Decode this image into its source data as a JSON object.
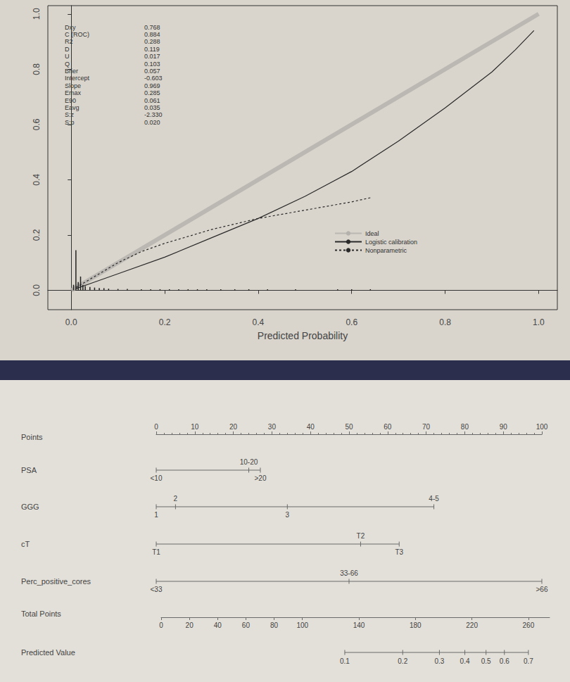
{
  "chart_data": [
    {
      "type": "line",
      "x_label": "Predicted Probability",
      "xlim": [
        -0.05,
        1.04
      ],
      "xticks": [
        {
          "value": 0,
          "label": "0.0"
        },
        {
          "value": 0.2,
          "label": "0.2"
        },
        {
          "value": 0.4,
          "label": "0.4"
        },
        {
          "value": 0.6,
          "label": "0.6"
        },
        {
          "value": 0.8,
          "label": "0.8"
        },
        {
          "value": 1,
          "label": "1.0"
        }
      ],
      "ylim": [
        -0.07,
        1.03
      ],
      "yticks": [
        {
          "value": 0,
          "label": "0.0"
        },
        {
          "value": 0.2,
          "label": "0.2"
        },
        {
          "value": 0.4,
          "label": "0.4"
        },
        {
          "value": 0.6,
          "label": "0.6"
        },
        {
          "value": 0.8,
          "label": "0.8"
        },
        {
          "value": 1,
          "label": "1.0"
        }
      ],
      "legend": "lower right",
      "series": [
        {
          "name": "Ideal",
          "color": "#b5b2ad",
          "line_style": "thick",
          "x": [
            0,
            1
          ],
          "values": [
            0,
            1
          ]
        },
        {
          "name": "Logistic calibration",
          "color": "#2a2a2a",
          "line_style": "solid",
          "x": [
            0.01,
            0.05,
            0.1,
            0.2,
            0.3,
            0.4,
            0.5,
            0.6,
            0.7,
            0.8,
            0.9,
            0.95,
            0.99
          ],
          "values": [
            0.006,
            0.03,
            0.06,
            0.12,
            0.19,
            0.26,
            0.34,
            0.43,
            0.54,
            0.66,
            0.79,
            0.87,
            0.94
          ]
        },
        {
          "name": "Nonparametric",
          "color": "#2a2a2a",
          "line_style": "dashed",
          "x": [
            0.01,
            0.05,
            0.1,
            0.15,
            0.2,
            0.3,
            0.4,
            0.5,
            0.6,
            0.64
          ],
          "values": [
            0.01,
            0.05,
            0.1,
            0.14,
            0.17,
            0.22,
            0.26,
            0.29,
            0.32,
            0.335
          ]
        }
      ],
      "rug": {
        "color": "#222222",
        "x": [
          0.005,
          0.01,
          0.015,
          0.02,
          0.025,
          0.03,
          0.04,
          0.05,
          0.06,
          0.07,
          0.08,
          0.1,
          0.12,
          0.15,
          0.17,
          0.19,
          0.21,
          0.23,
          0.25,
          0.27,
          0.29,
          0.32,
          0.35,
          0.38,
          0.42,
          0.48,
          0.57,
          0.6,
          0.64
        ],
        "values": [
          0.02,
          0.145,
          0.03,
          0.05,
          0.02,
          0.015,
          0.012,
          0.01,
          0.008,
          0.008,
          0.006,
          0.005,
          0.005,
          0.004,
          0.004,
          0.004,
          0.004,
          0.004,
          0.004,
          0.004,
          0.004,
          0.004,
          0.004,
          0.004,
          0.004,
          0.004,
          0.004,
          0.004,
          0.004
        ]
      },
      "stats": [
        {
          "name": "Dxy",
          "value": 0.768
        },
        {
          "name": "C (ROC)",
          "value": 0.884
        },
        {
          "name": "R2",
          "value": 0.288
        },
        {
          "name": "D",
          "value": 0.119
        },
        {
          "name": "U",
          "value": 0.017
        },
        {
          "name": "Q",
          "value": 0.103
        },
        {
          "name": "Brier",
          "value": 0.057
        },
        {
          "name": "Intercept",
          "value": -0.603
        },
        {
          "name": "Slope",
          "value": 0.969
        },
        {
          "name": "Emax",
          "value": 0.285
        },
        {
          "name": "E90",
          "value": 0.061
        },
        {
          "name": "Eavg",
          "value": 0.035
        },
        {
          "name": "S:z",
          "value": -2.33,
          "label": "-2.330"
        },
        {
          "name": "S:p",
          "value": 0.02,
          "label": "0.020"
        }
      ]
    },
    {
      "type": "nomogram",
      "points_axis": {
        "name": "Points",
        "xlim": [
          0,
          100
        ],
        "xticks": [
          0,
          10,
          20,
          30,
          40,
          50,
          60,
          70,
          80,
          90,
          100
        ]
      },
      "variables": [
        {
          "name": "PSA",
          "levels": [
            {
              "label": "<10",
              "points": 0
            },
            {
              "label": "10-20",
              "points": 24
            },
            {
              "label": ">20",
              "points": 27
            }
          ]
        },
        {
          "name": "GGG",
          "levels": [
            {
              "label": "1",
              "points": 0
            },
            {
              "label": "2",
              "points": 5
            },
            {
              "label": "3",
              "points": 34
            },
            {
              "label": "4-5",
              "points": 72
            }
          ]
        },
        {
          "name": "cT",
          "levels": [
            {
              "label": "T1",
              "points": 0
            },
            {
              "label": "T2",
              "points": 53
            },
            {
              "label": "T3",
              "points": 63
            }
          ]
        },
        {
          "name": "Perc_positive_cores",
          "levels": [
            {
              "label": "<33",
              "points": 0
            },
            {
              "label": "33-66",
              "points": 50
            },
            {
              "label": ">66",
              "points": 100
            }
          ]
        }
      ],
      "total_points": {
        "name": "Total Points",
        "xlim": [
          0,
          275
        ],
        "xticks": [
          0,
          20,
          40,
          60,
          80,
          100,
          140,
          180,
          220,
          260
        ]
      },
      "predicted": {
        "name": "Predicted Value",
        "ticks": [
          {
            "value": 0.1,
            "points": 130
          },
          {
            "value": 0.2,
            "points": 171
          },
          {
            "value": 0.3,
            "points": 197
          },
          {
            "value": 0.4,
            "points": 215
          },
          {
            "value": 0.5,
            "points": 230
          },
          {
            "value": 0.6,
            "points": 243
          },
          {
            "value": 0.7,
            "points": 260
          }
        ]
      }
    }
  ]
}
